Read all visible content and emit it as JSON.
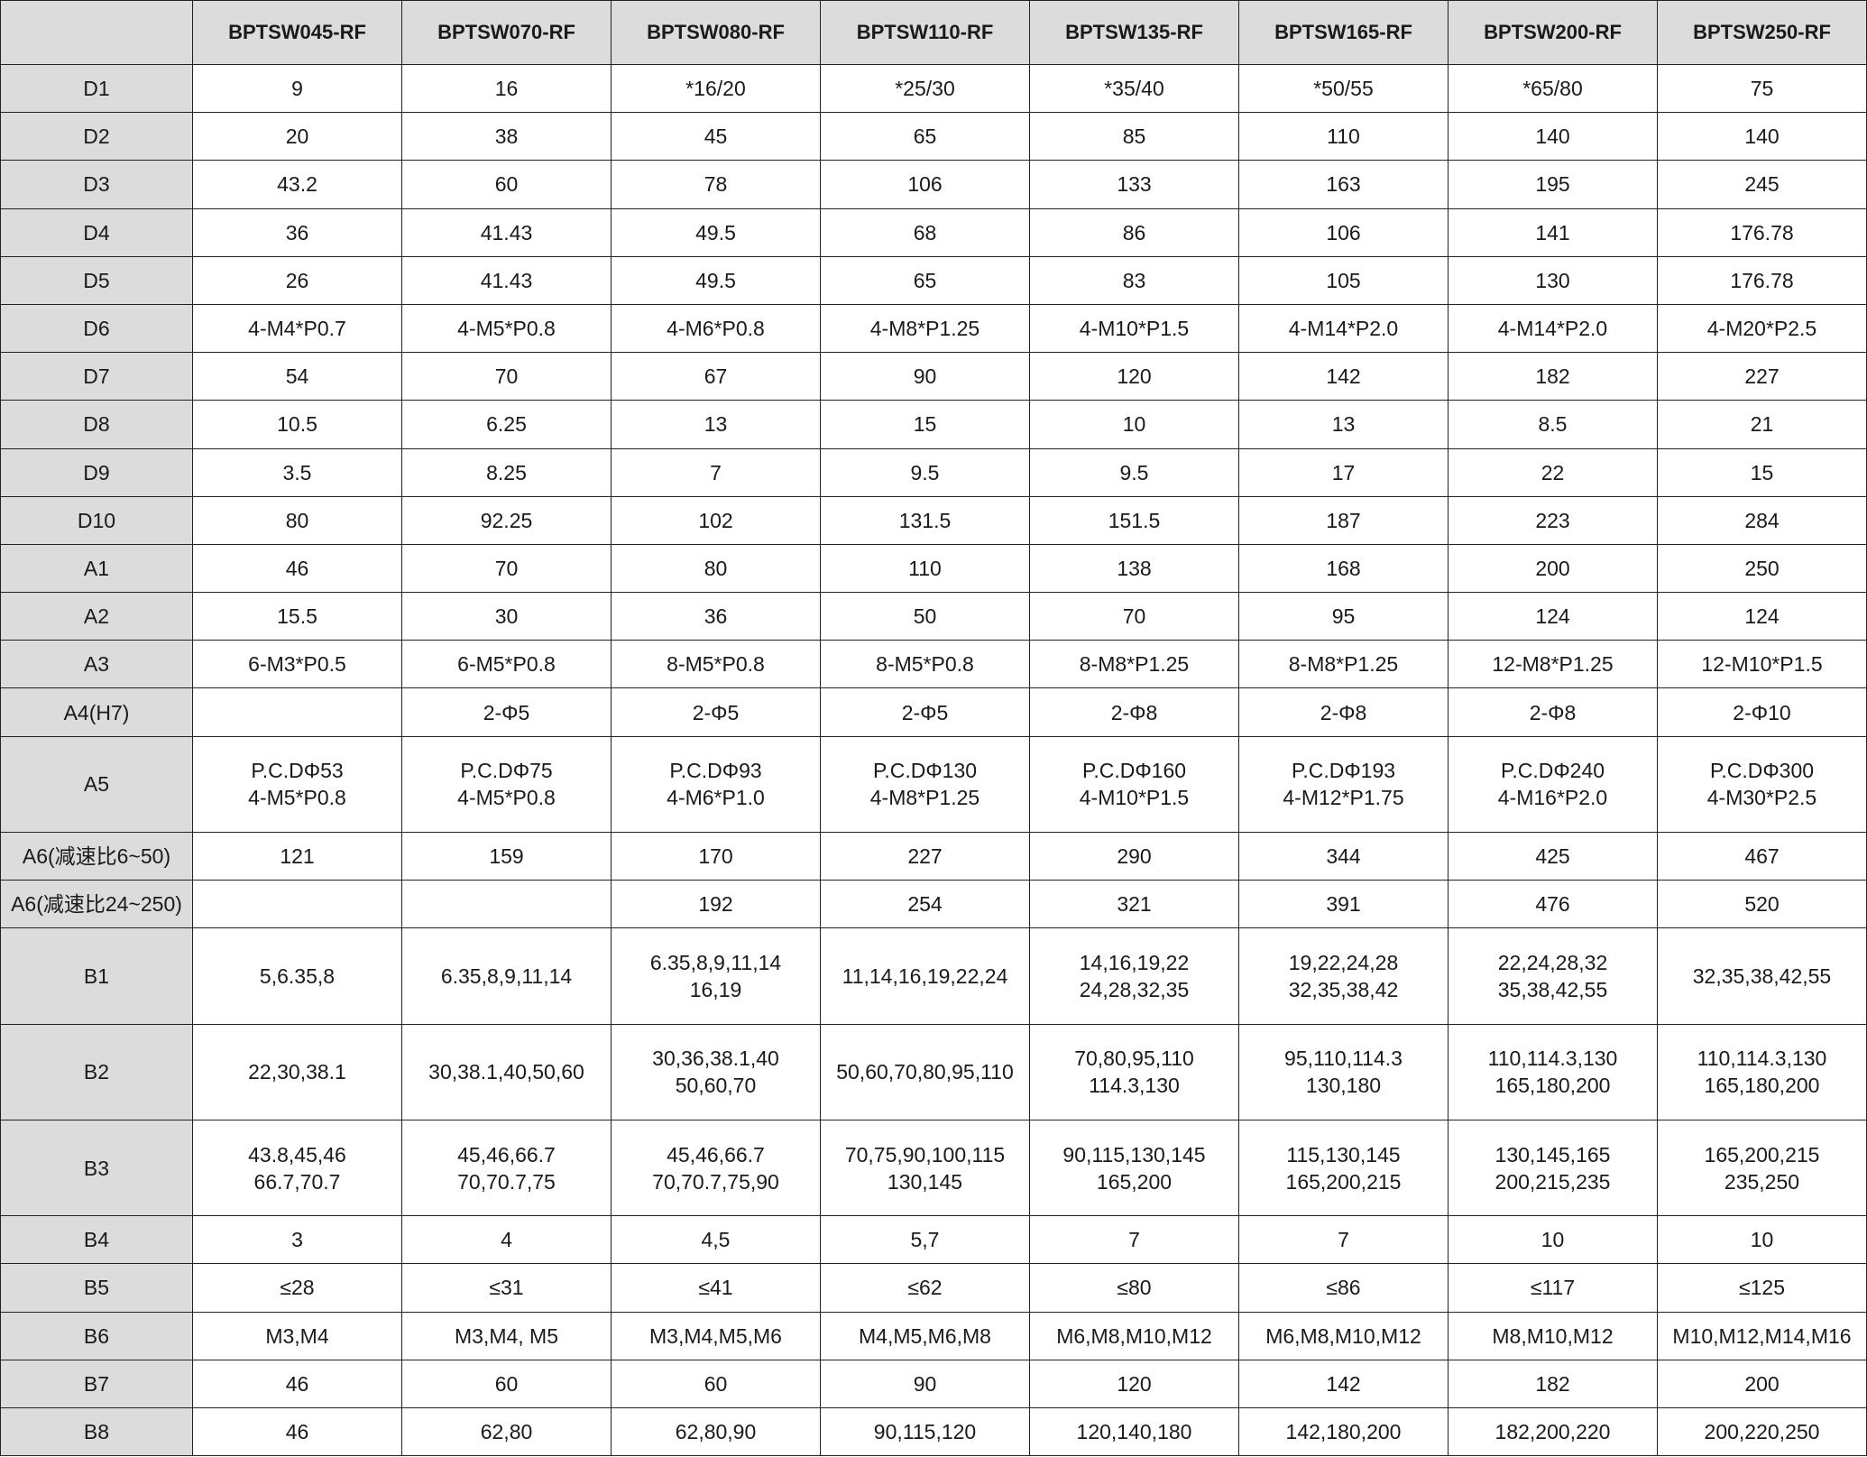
{
  "table": {
    "corner": "",
    "columns": [
      "BPTSW045-RF",
      "BPTSW070-RF",
      "BPTSW080-RF",
      "BPTSW110-RF",
      "BPTSW135-RF",
      "BPTSW165-RF",
      "BPTSW200-RF",
      "BPTSW250-RF"
    ],
    "rows": [
      {
        "label": "D1",
        "values": [
          "9",
          "16",
          "*16/20",
          "*25/30",
          "*35/40",
          "*50/55",
          "*65/80",
          "75"
        ]
      },
      {
        "label": "D2",
        "values": [
          "20",
          "38",
          "45",
          "65",
          "85",
          "110",
          "140",
          "140"
        ]
      },
      {
        "label": "D3",
        "values": [
          "43.2",
          "60",
          "78",
          "106",
          "133",
          "163",
          "195",
          "245"
        ]
      },
      {
        "label": "D4",
        "values": [
          "36",
          "41.43",
          "49.5",
          "68",
          "86",
          "106",
          "141",
          "176.78"
        ]
      },
      {
        "label": "D5",
        "values": [
          "26",
          "41.43",
          "49.5",
          "65",
          "83",
          "105",
          "130",
          "176.78"
        ]
      },
      {
        "label": "D6",
        "values": [
          "4-M4*P0.7",
          "4-M5*P0.8",
          "4-M6*P0.8",
          "4-M8*P1.25",
          "4-M10*P1.5",
          "4-M14*P2.0",
          "4-M14*P2.0",
          "4-M20*P2.5"
        ]
      },
      {
        "label": "D7",
        "values": [
          "54",
          "70",
          "67",
          "90",
          "120",
          "142",
          "182",
          "227"
        ]
      },
      {
        "label": "D8",
        "values": [
          "10.5",
          "6.25",
          "13",
          "15",
          "10",
          "13",
          "8.5",
          "21"
        ]
      },
      {
        "label": "D9",
        "values": [
          "3.5",
          "8.25",
          "7",
          "9.5",
          "9.5",
          "17",
          "22",
          "15"
        ]
      },
      {
        "label": "D10",
        "values": [
          "80",
          "92.25",
          "102",
          "131.5",
          "151.5",
          "187",
          "223",
          "284"
        ]
      },
      {
        "label": "A1",
        "values": [
          "46",
          "70",
          "80",
          "110",
          "138",
          "168",
          "200",
          "250"
        ]
      },
      {
        "label": "A2",
        "values": [
          "15.5",
          "30",
          "36",
          "50",
          "70",
          "95",
          "124",
          "124"
        ]
      },
      {
        "label": "A3",
        "values": [
          "6-M3*P0.5",
          "6-M5*P0.8",
          "8-M5*P0.8",
          "8-M5*P0.8",
          "8-M8*P1.25",
          "8-M8*P1.25",
          "12-M8*P1.25",
          "12-M10*P1.5"
        ]
      },
      {
        "label": "A4(H7)",
        "values": [
          "",
          "2-Φ5",
          "2-Φ5",
          "2-Φ5",
          "2-Φ8",
          "2-Φ8",
          "2-Φ8",
          "2-Φ10"
        ]
      },
      {
        "label": "A5",
        "double": true,
        "values": [
          "P.C.DΦ53\n4-M5*P0.8",
          "P.C.DΦ75\n4-M5*P0.8",
          "P.C.DΦ93\n4-M6*P1.0",
          "P.C.DΦ130\n4-M8*P1.25",
          "P.C.DΦ160\n4-M10*P1.5",
          "P.C.DΦ193\n4-M12*P1.75",
          "P.C.DΦ240\n4-M16*P2.0",
          "P.C.DΦ300\n4-M30*P2.5"
        ]
      },
      {
        "label": "A6(减速比6~50)",
        "values": [
          "121",
          "159",
          "170",
          "227",
          "290",
          "344",
          "425",
          "467"
        ]
      },
      {
        "label": "A6(减速比24~250)",
        "values": [
          "",
          "",
          "192",
          "254",
          "321",
          "391",
          "476",
          "520"
        ]
      },
      {
        "label": "B1",
        "double": true,
        "values": [
          "5,6.35,8",
          "6.35,8,9,11,14",
          "6.35,8,9,11,14\n16,19",
          "11,14,16,19,22,24",
          "14,16,19,22\n24,28,32,35",
          "19,22,24,28\n32,35,38,42",
          "22,24,28,32\n35,38,42,55",
          "32,35,38,42,55"
        ]
      },
      {
        "label": "B2",
        "double": true,
        "values": [
          "22,30,38.1",
          "30,38.1,40,50,60",
          "30,36,38.1,40\n50,60,70",
          "50,60,70,80,95,110",
          "70,80,95,110\n114.3,130",
          "95,110,114.3\n130,180",
          "110,114.3,130\n165,180,200",
          "110,114.3,130\n165,180,200"
        ]
      },
      {
        "label": "B3",
        "double": true,
        "values": [
          "43.8,45,46\n66.7,70.7",
          "45,46,66.7\n70,70.7,75",
          "45,46,66.7\n70,70.7,75,90",
          "70,75,90,100,115\n130,145",
          "90,115,130,145\n165,200",
          "115,130,145\n165,200,215",
          "130,145,165\n200,215,235",
          "165,200,215\n235,250"
        ]
      },
      {
        "label": "B4",
        "values": [
          "3",
          "4",
          "4,5",
          "5,7",
          "7",
          "7",
          "10",
          "10"
        ]
      },
      {
        "label": "B5",
        "values": [
          "≤28",
          "≤31",
          "≤41",
          "≤62",
          "≤80",
          "≤86",
          "≤117",
          "≤125"
        ]
      },
      {
        "label": "B6",
        "values": [
          "M3,M4",
          "M3,M4, M5",
          "M3,M4,M5,M6",
          "M4,M5,M6,M8",
          "M6,M8,M10,M12",
          "M6,M8,M10,M12",
          "M8,M10,M12",
          "M10,M12,M14,M16"
        ]
      },
      {
        "label": "B7",
        "values": [
          "46",
          "60",
          "60",
          "90",
          "120",
          "142",
          "182",
          "200"
        ]
      },
      {
        "label": "B8",
        "values": [
          "46",
          "62,80",
          "62,80,90",
          "90,115,120",
          "120,140,180",
          "142,180,200",
          "182,200,220",
          "200,220,250"
        ]
      }
    ]
  },
  "colors": {
    "header_bg": "#dcdcdc",
    "border": "#222222",
    "text": "#1a1a1a"
  }
}
